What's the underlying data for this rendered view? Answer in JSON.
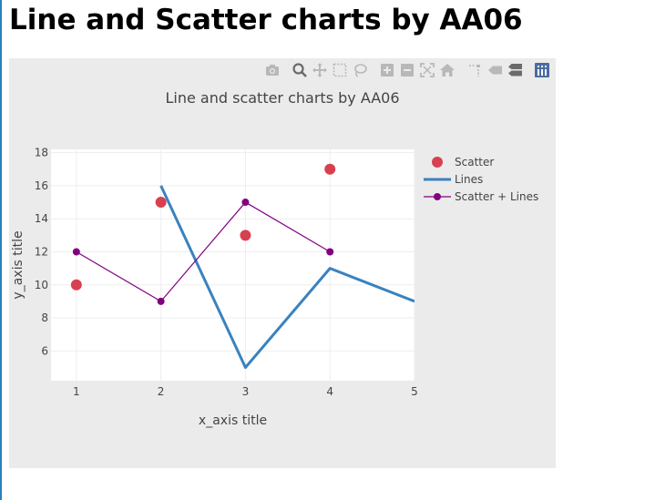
{
  "page": {
    "heading": "Line and Scatter charts by AA06"
  },
  "toolbar": {
    "buttons": [
      {
        "name": "download-plot-button",
        "icon": "camera-icon"
      },
      {
        "name": "zoom-button",
        "icon": "zoom-icon"
      },
      {
        "name": "pan-button",
        "icon": "pan-icon"
      },
      {
        "name": "box-select-button",
        "icon": "box-select-icon"
      },
      {
        "name": "lasso-select-button",
        "icon": "lasso-icon"
      },
      {
        "name": "zoom-in-button",
        "icon": "zoom-in-icon"
      },
      {
        "name": "zoom-out-button",
        "icon": "zoom-out-icon"
      },
      {
        "name": "autoscale-button",
        "icon": "autoscale-icon"
      },
      {
        "name": "reset-axes-button",
        "icon": "home-icon"
      },
      {
        "name": "spike-lines-button",
        "icon": "spike-lines-icon"
      },
      {
        "name": "hover-closest-button",
        "icon": "hover-closest-icon"
      },
      {
        "name": "hover-compare-button",
        "icon": "hover-compare-icon"
      },
      {
        "name": "plotly-logo-button",
        "icon": "plotly-logo-icon"
      }
    ]
  },
  "chart_data": {
    "type": "scatter",
    "title": "Line and scatter charts by AA06",
    "xlabel": "x_axis title",
    "ylabel": "y_axis title",
    "xlim": [
      0.7,
      5
    ],
    "ylim": [
      4.2,
      18.2
    ],
    "xticks": [
      1,
      2,
      3,
      4,
      5
    ],
    "yticks": [
      6,
      8,
      10,
      12,
      14,
      16,
      18
    ],
    "grid": true,
    "legend_position": "right",
    "series": [
      {
        "name": "Scatter",
        "mode": "markers",
        "color": "#d9404f",
        "x": [
          1,
          2,
          3,
          4
        ],
        "y": [
          10,
          15,
          13,
          17
        ]
      },
      {
        "name": "Lines",
        "mode": "lines",
        "color": "#3a82be",
        "x": [
          2,
          3,
          4,
          5
        ],
        "y": [
          16,
          5,
          11,
          9
        ]
      },
      {
        "name": "Scatter + Lines",
        "mode": "lines+markers",
        "color": "#800080",
        "x": [
          1,
          2,
          3,
          4
        ],
        "y": [
          12,
          9,
          15,
          12
        ]
      }
    ]
  }
}
